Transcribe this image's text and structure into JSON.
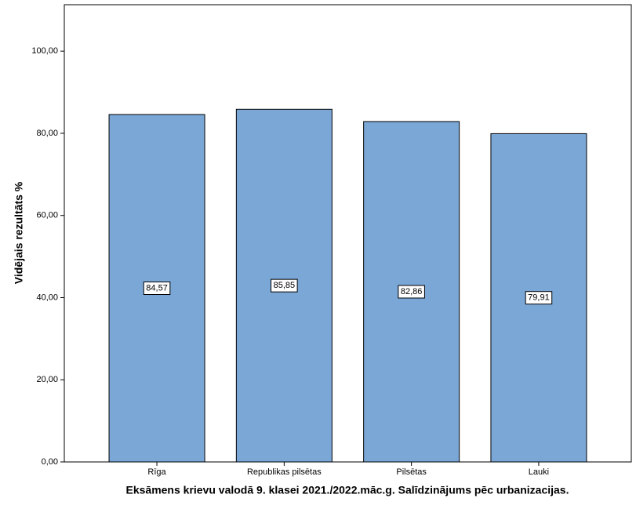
{
  "chart_data": {
    "type": "bar",
    "x_label": "Eksāmens krievu valodā 9. klasei 2021./2022.māc.g. Salīdzinājums pēc urbanizacijas.",
    "y_label": "Vidējais rezultāts %",
    "categories": [
      "Rīga",
      "Republikas pilsētas",
      "Pilsētas",
      "Lauki"
    ],
    "values": [
      84.57,
      85.85,
      82.86,
      79.91
    ],
    "value_labels": [
      "84,57",
      "85,85",
      "82,86",
      "79,91"
    ],
    "color": "#7ba7d6",
    "ylim": [
      0,
      111.3
    ],
    "yticks": [
      {
        "value": 0,
        "label": "0,00"
      },
      {
        "value": 20,
        "label": "20,00"
      },
      {
        "value": 40,
        "label": "40,00"
      },
      {
        "value": 60,
        "label": "60,00"
      },
      {
        "value": 80,
        "label": "80,00"
      },
      {
        "value": 100,
        "label": "100,00"
      }
    ],
    "grid": false
  }
}
